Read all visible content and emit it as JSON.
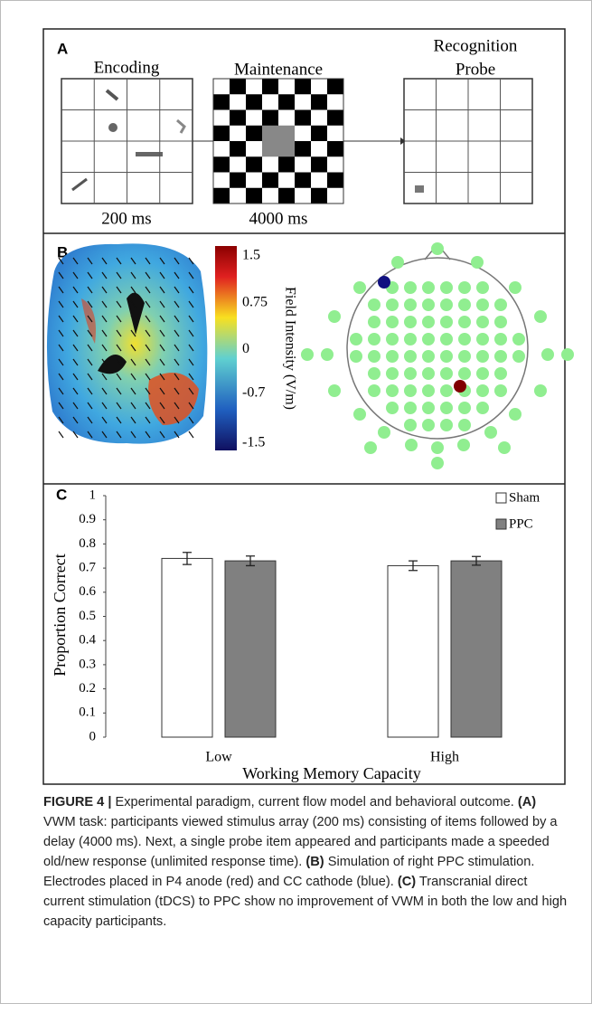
{
  "panels": {
    "a": {
      "label": "A",
      "encoding": "Encoding",
      "maintenance": "Maintenance",
      "probe": [
        "Recognition",
        "Probe"
      ],
      "encoding_time": "200 ms",
      "maintenance_time": "4000 ms"
    },
    "b": {
      "label": "B",
      "colorbar_title": "Field Intensity (V/m)",
      "colorbar_lim": [
        -1.5,
        1.5
      ],
      "colorbar_ticks": [
        1.5,
        0.75,
        0,
        -0.7,
        -1.5
      ]
    }
  },
  "chart_data": {
    "type": "bar",
    "panel_label": "C",
    "x_label": "Working Memory Capacity",
    "y_label": "Proportion Correct",
    "categories": [
      "Low",
      "High"
    ],
    "series": [
      {
        "name": "Sham",
        "color": "#ffffff",
        "values": [
          0.74,
          0.71
        ],
        "errors": [
          0.025,
          0.02
        ]
      },
      {
        "name": "PPC",
        "color": "#808080",
        "values": [
          0.73,
          0.73
        ],
        "errors": [
          0.02,
          0.018
        ]
      }
    ],
    "ylim": [
      0,
      1
    ],
    "yticks": [
      0,
      0.1,
      0.2,
      0.3,
      0.4,
      0.5,
      0.6,
      0.7,
      0.8,
      0.9,
      1
    ],
    "grid": false,
    "legend": "top-right"
  },
  "caption": {
    "label": "FIGURE 4 |",
    "title": "Experimental paradigm, current flow model and behavioral outcome.",
    "parts": [
      {
        "tag": "(A)",
        "text": "VWM task: participants viewed stimulus array (200 ms) consisting of items followed by a delay (4000 ms). Next, a single probe item appeared and participants made a speeded old/new response (unlimited response time)."
      },
      {
        "tag": "(B)",
        "text": "Simulation of right PPC stimulation. Electrodes placed in P4 anode (red) and CC cathode (blue)."
      },
      {
        "tag": "(C)",
        "text": "Transcranial direct current stimulation (tDCS) to PPC show no improvement of VWM in both the low and high capacity participants."
      }
    ]
  }
}
